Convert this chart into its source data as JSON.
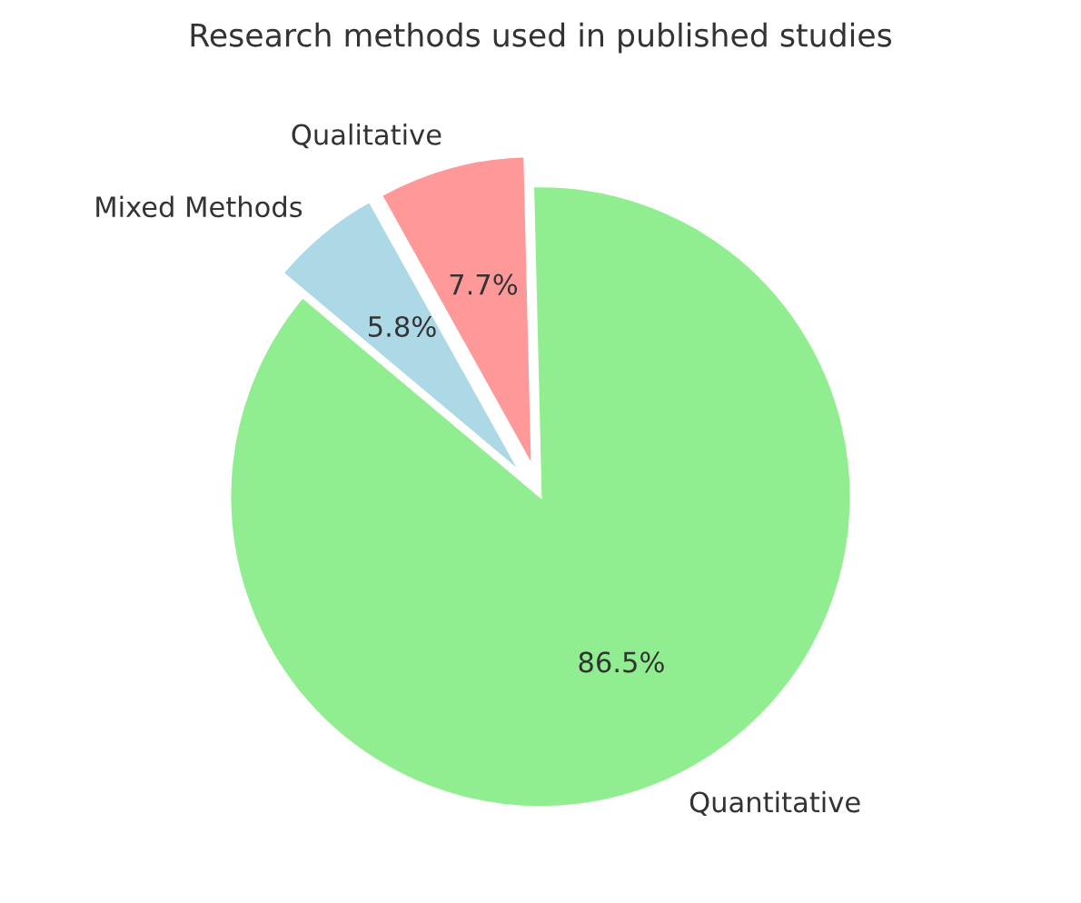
{
  "chart_data": {
    "type": "pie",
    "title": "Research methods used in published studies",
    "categories": [
      "Quantitative",
      "Qualitative",
      "Mixed Methods"
    ],
    "values": [
      86.5,
      7.7,
      5.8
    ],
    "value_labels": [
      "86.5%",
      "7.7%",
      "5.8%"
    ],
    "colors": [
      "#90ee90",
      "#ff9999",
      "#add8e6"
    ]
  }
}
